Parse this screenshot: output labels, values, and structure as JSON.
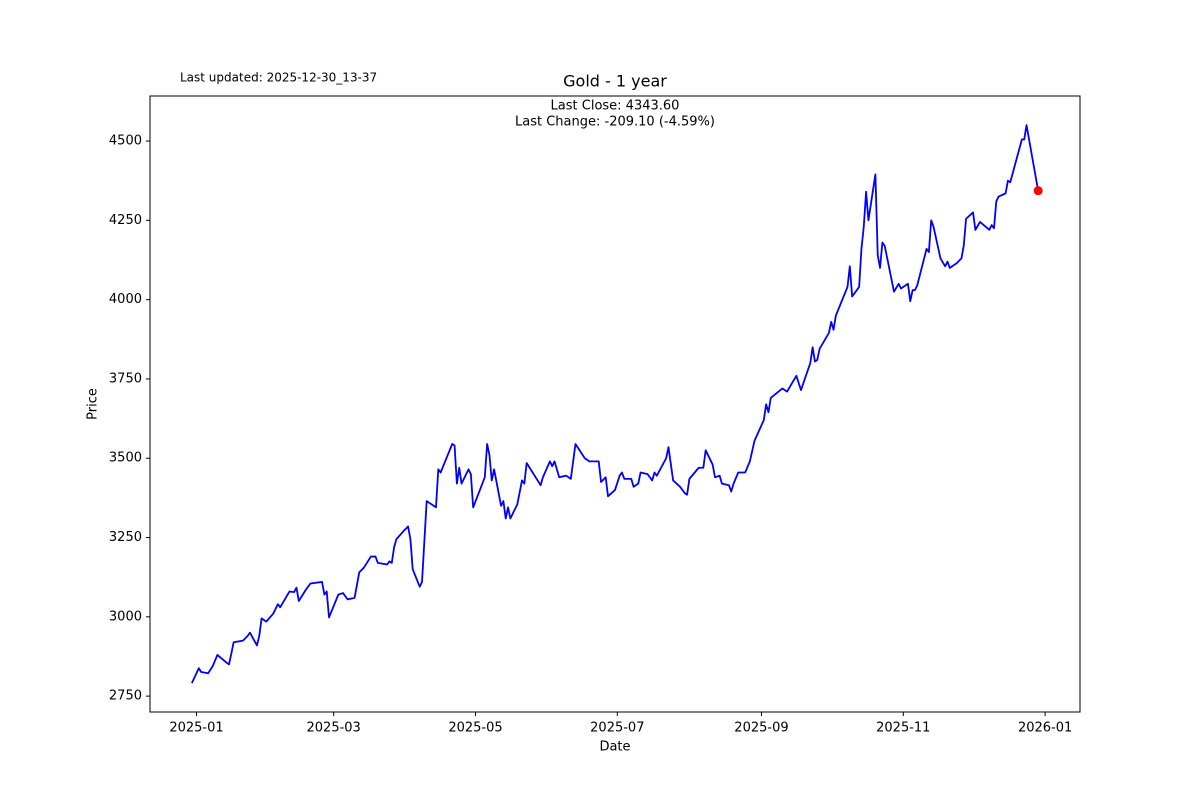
{
  "chart_data": {
    "type": "line",
    "title": "Gold - 1 year",
    "annotations": [
      "Last Close: 4343.60",
      "Last Change: -209.10 (-4.59%)"
    ],
    "updated": "Last updated: 2025-12-30_13-37",
    "x_label": "Date",
    "y_label": "Price",
    "xlim": [
      "2024-12-12",
      "2026-01-16"
    ],
    "xticks": [
      {
        "value": "2025-01-01",
        "label": "2025-01"
      },
      {
        "value": "2025-03-01",
        "label": "2025-03"
      },
      {
        "value": "2025-05-01",
        "label": "2025-05"
      },
      {
        "value": "2025-07-01",
        "label": "2025-07"
      },
      {
        "value": "2025-09-01",
        "label": "2025-09"
      },
      {
        "value": "2025-11-01",
        "label": "2025-11"
      },
      {
        "value": "2026-01-01",
        "label": "2026-01"
      }
    ],
    "ylim": [
      2700,
      4642
    ],
    "yticks": [
      2750,
      3000,
      3250,
      3500,
      3750,
      4000,
      4250,
      4500
    ],
    "grid": false,
    "last_marker_color": "#ff0000",
    "x": [
      "2024-12-30",
      "2025-01-02",
      "2025-01-03",
      "2025-01-06",
      "2025-01-08",
      "2025-01-10",
      "2025-01-14",
      "2025-01-15",
      "2025-01-17",
      "2025-01-21",
      "2025-01-23",
      "2025-01-24",
      "2025-01-27",
      "2025-01-28",
      "2025-01-29",
      "2025-01-31",
      "2025-02-03",
      "2025-02-05",
      "2025-02-06",
      "2025-02-10",
      "2025-02-12",
      "2025-02-13",
      "2025-02-14",
      "2025-02-17",
      "2025-02-18",
      "2025-02-19",
      "2025-02-24",
      "2025-02-25",
      "2025-02-26",
      "2025-02-27",
      "2025-03-03",
      "2025-03-05",
      "2025-03-07",
      "2025-03-10",
      "2025-03-12",
      "2025-03-14",
      "2025-03-17",
      "2025-03-19",
      "2025-03-20",
      "2025-03-24",
      "2025-03-25",
      "2025-03-26",
      "2025-03-27",
      "2025-03-28",
      "2025-03-31",
      "2025-04-02",
      "2025-04-03",
      "2025-04-04",
      "2025-04-07",
      "2025-04-08",
      "2025-04-10",
      "2025-04-14",
      "2025-04-15",
      "2025-04-16",
      "2025-04-21",
      "2025-04-22",
      "2025-04-23",
      "2025-04-24",
      "2025-04-25",
      "2025-04-28",
      "2025-04-29",
      "2025-04-30",
      "2025-05-05",
      "2025-05-06",
      "2025-05-07",
      "2025-05-08",
      "2025-05-09",
      "2025-05-12",
      "2025-05-13",
      "2025-05-14",
      "2025-05-15",
      "2025-05-16",
      "2025-05-19",
      "2025-05-21",
      "2025-05-22",
      "2025-05-23",
      "2025-05-29",
      "2025-05-30",
      "2025-06-02",
      "2025-06-03",
      "2025-06-04",
      "2025-06-06",
      "2025-06-09",
      "2025-06-11",
      "2025-06-13",
      "2025-06-17",
      "2025-06-19",
      "2025-06-23",
      "2025-06-24",
      "2025-06-26",
      "2025-06-27",
      "2025-06-30",
      "2025-07-02",
      "2025-07-03",
      "2025-07-04",
      "2025-07-07",
      "2025-07-08",
      "2025-07-10",
      "2025-07-11",
      "2025-07-14",
      "2025-07-16",
      "2025-07-17",
      "2025-07-18",
      "2025-07-22",
      "2025-07-23",
      "2025-07-25",
      "2025-07-28",
      "2025-07-30",
      "2025-07-31",
      "2025-08-01",
      "2025-08-05",
      "2025-08-07",
      "2025-08-08",
      "2025-08-11",
      "2025-08-12",
      "2025-08-14",
      "2025-08-15",
      "2025-08-18",
      "2025-08-19",
      "2025-08-20",
      "2025-08-22",
      "2025-08-25",
      "2025-08-27",
      "2025-08-29",
      "2025-09-02",
      "2025-09-03",
      "2025-09-04",
      "2025-09-05",
      "2025-09-10",
      "2025-09-12",
      "2025-09-16",
      "2025-09-18",
      "2025-09-22",
      "2025-09-23",
      "2025-09-24",
      "2025-09-25",
      "2025-09-26",
      "2025-09-30",
      "2025-10-01",
      "2025-10-02",
      "2025-10-03",
      "2025-10-08",
      "2025-10-09",
      "2025-10-10",
      "2025-10-13",
      "2025-10-14",
      "2025-10-15",
      "2025-10-16",
      "2025-10-17",
      "2025-10-20",
      "2025-10-21",
      "2025-10-22",
      "2025-10-23",
      "2025-10-24",
      "2025-10-28",
      "2025-10-30",
      "2025-10-31",
      "2025-11-03",
      "2025-11-04",
      "2025-11-05",
      "2025-11-06",
      "2025-11-07",
      "2025-11-11",
      "2025-11-12",
      "2025-11-13",
      "2025-11-14",
      "2025-11-17",
      "2025-11-19",
      "2025-11-20",
      "2025-11-21",
      "2025-11-24",
      "2025-11-26",
      "2025-11-27",
      "2025-11-28",
      "2025-12-01",
      "2025-12-02",
      "2025-12-04",
      "2025-12-08",
      "2025-12-09",
      "2025-12-10",
      "2025-12-11",
      "2025-12-12",
      "2025-12-15",
      "2025-12-16",
      "2025-12-17",
      "2025-12-22",
      "2025-12-23",
      "2025-12-24",
      "2025-12-29"
    ],
    "series": [
      {
        "name": "Gold",
        "color": "#0000ff",
        "values": [
          2791,
          2838,
          2826,
          2822,
          2845,
          2880,
          2855,
          2850,
          2920,
          2925,
          2940,
          2950,
          2910,
          2940,
          2995,
          2985,
          3010,
          3040,
          3030,
          3080,
          3078,
          3092,
          3050,
          3085,
          3095,
          3105,
          3110,
          3070,
          3080,
          2998,
          3070,
          3075,
          3055,
          3060,
          3140,
          3155,
          3190,
          3190,
          3170,
          3165,
          3175,
          3170,
          3220,
          3245,
          3270,
          3285,
          3245,
          3150,
          3095,
          3110,
          3365,
          3345,
          3465,
          3455,
          3545,
          3540,
          3420,
          3470,
          3420,
          3465,
          3450,
          3345,
          3440,
          3545,
          3510,
          3430,
          3465,
          3350,
          3365,
          3310,
          3345,
          3310,
          3355,
          3430,
          3420,
          3485,
          3415,
          3440,
          3490,
          3475,
          3490,
          3440,
          3445,
          3435,
          3545,
          3500,
          3490,
          3490,
          3425,
          3440,
          3380,
          3400,
          3445,
          3455,
          3435,
          3435,
          3410,
          3420,
          3455,
          3450,
          3430,
          3455,
          3445,
          3500,
          3535,
          3430,
          3410,
          3390,
          3385,
          3435,
          3470,
          3470,
          3525,
          3480,
          3440,
          3445,
          3420,
          3415,
          3395,
          3420,
          3455,
          3455,
          3490,
          3555,
          3620,
          3670,
          3645,
          3690,
          3720,
          3710,
          3760,
          3715,
          3800,
          3850,
          3805,
          3810,
          3845,
          3895,
          3930,
          3905,
          3950,
          4040,
          4105,
          4010,
          4040,
          4160,
          4230,
          4340,
          4250,
          4395,
          4140,
          4100,
          4180,
          4170,
          4025,
          4050,
          4035,
          4050,
          3995,
          4030,
          4030,
          4045,
          4160,
          4150,
          4250,
          4230,
          4130,
          4105,
          4120,
          4100,
          4115,
          4130,
          4170,
          4255,
          4275,
          4220,
          4245,
          4220,
          4235,
          4225,
          4310,
          4325,
          4335,
          4375,
          4370,
          4505,
          4505,
          4550,
          4343.6
        ]
      }
    ]
  }
}
